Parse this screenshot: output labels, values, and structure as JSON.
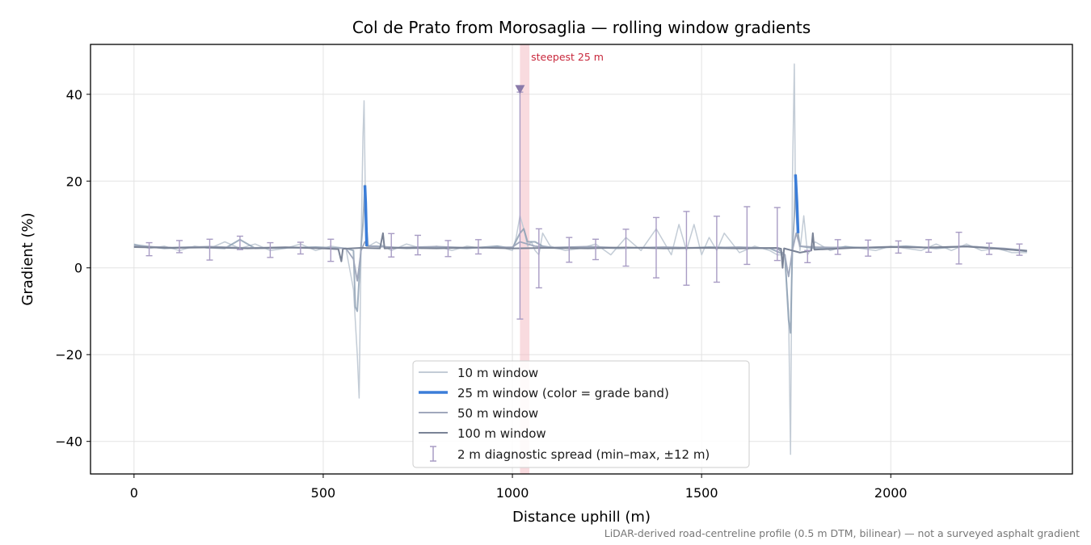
{
  "chart_data": {
    "type": "line",
    "title": "Col de Prato from Morosaglia — rolling window gradients",
    "xlabel": "Distance uphill (m)",
    "ylabel": "Gradient (%)",
    "xlim": [
      -115,
      2480
    ],
    "ylim": [
      -47.5,
      51.5
    ],
    "x_ticks": [
      0,
      500,
      1000,
      1500,
      2000
    ],
    "x_tick_labels": [
      "0",
      "500",
      "1000",
      "1500",
      "2000"
    ],
    "y_ticks": [
      -40,
      -20,
      0,
      20,
      40
    ],
    "y_tick_labels": [
      "−40",
      "−20",
      "0",
      "20",
      "40"
    ],
    "grid": true,
    "legend_position": "lower-center",
    "footnote": "LiDAR-derived road-centreline profile (0.5 m DTM, bilinear) — not a surveyed asphalt gradient",
    "colors": {
      "w10": "#c3ccd6",
      "w25_base": "#8a9cb0",
      "w25_band": "#3b7dd8",
      "w50": "#a0a8bc",
      "w100": "#7a8396",
      "diag": "#a89cc4",
      "steep_band": "#f4b8c0",
      "steep_marker": "#8a7aaa",
      "annot": "#c8283c"
    },
    "annotation": {
      "label": "steepest 25 m",
      "band": [
        1020,
        1045
      ],
      "marker_x": 1020,
      "marker_y": 41
    },
    "series": [
      {
        "name": "10 m window",
        "x": [
          0,
          40,
          80,
          120,
          160,
          200,
          240,
          280,
          320,
          360,
          400,
          440,
          480,
          520,
          560,
          580,
          590,
          595,
          600,
          605,
          608,
          612,
          620,
          640,
          680,
          720,
          760,
          800,
          840,
          880,
          920,
          960,
          1000,
          1010,
          1020,
          1030,
          1040,
          1050,
          1060,
          1070,
          1080,
          1100,
          1140,
          1180,
          1220,
          1260,
          1300,
          1340,
          1380,
          1420,
          1440,
          1460,
          1480,
          1500,
          1520,
          1540,
          1560,
          1600,
          1640,
          1680,
          1700,
          1720,
          1730,
          1735,
          1740,
          1745,
          1748,
          1752,
          1760,
          1770,
          1780,
          1800,
          1840,
          1880,
          1920,
          1960,
          2000,
          2040,
          2080,
          2120,
          2160,
          2200,
          2240,
          2280,
          2320,
          2360
        ],
        "y": [
          5.5,
          4.5,
          5,
          4,
          5,
          4.5,
          6,
          4.5,
          5.5,
          4,
          4.5,
          5.5,
          4,
          5,
          4.5,
          -5,
          -20,
          -30,
          5,
          30,
          38.5,
          12,
          5,
          6,
          4,
          5.5,
          4.5,
          5,
          4,
          5,
          4.5,
          5,
          4,
          7,
          12,
          9,
          5,
          6,
          4,
          3,
          8,
          5,
          4,
          4.5,
          5.5,
          3,
          7,
          4,
          9,
          3,
          10,
          4,
          10,
          3,
          7,
          4,
          8,
          3.5,
          5,
          4,
          3,
          3,
          -10,
          -43,
          20,
          47,
          15,
          10,
          4,
          12,
          3,
          6,
          4,
          5,
          4.5,
          4,
          5,
          4.5,
          4,
          5.5,
          4,
          5.5,
          4,
          4.5,
          3.5,
          3.5
        ]
      },
      {
        "name": "25 m window (color = grade band)",
        "x": [
          0,
          80,
          160,
          240,
          280,
          320,
          400,
          480,
          560,
          580,
          585,
          590,
          600,
          605,
          610,
          612,
          615,
          640,
          720,
          800,
          880,
          960,
          1000,
          1020,
          1030,
          1040,
          1060,
          1080,
          1120,
          1200,
          1280,
          1360,
          1440,
          1520,
          1600,
          1680,
          1720,
          1730,
          1735,
          1740,
          1745,
          1748,
          1752,
          1755,
          1760,
          1800,
          1880,
          1960,
          2040,
          2120,
          2200,
          2280,
          2360
        ],
        "y": [
          5.3,
          4.5,
          4.8,
          4.5,
          6.5,
          4.5,
          4.6,
          4.8,
          4.5,
          4,
          -9,
          -10,
          5,
          10,
          19,
          15,
          5,
          5,
          4.5,
          4.8,
          4.5,
          5,
          4.5,
          8,
          9,
          6,
          6,
          5,
          4.5,
          4.8,
          4.5,
          4.7,
          4.5,
          4.8,
          4.6,
          4.5,
          3,
          -12,
          -15,
          4,
          12,
          21.5,
          15,
          8,
          5,
          4.5,
          4.8,
          4.6,
          5,
          4.5,
          5,
          4.5,
          3.8
        ],
        "band_segments": [
          [
            610,
            615
          ],
          [
            1748,
            1756
          ]
        ]
      },
      {
        "name": "50 m window",
        "x": [
          0,
          100,
          200,
          300,
          400,
          500,
          560,
          580,
          590,
          600,
          610,
          620,
          700,
          800,
          900,
          1000,
          1020,
          1040,
          1060,
          1100,
          1200,
          1300,
          1400,
          1500,
          1600,
          1700,
          1720,
          1730,
          1740,
          1750,
          1760,
          1800,
          1900,
          2000,
          2100,
          2200,
          2300,
          2360
        ],
        "y": [
          5,
          4.7,
          4.9,
          4.6,
          4.8,
          4.6,
          4.5,
          2,
          -3,
          4,
          6,
          5,
          4.7,
          4.9,
          4.6,
          4.8,
          6,
          5.5,
          5,
          4.7,
          4.9,
          4.6,
          4.8,
          4.6,
          4.8,
          4.5,
          3,
          -2,
          4,
          8,
          5,
          4.8,
          4.6,
          4.9,
          4.7,
          5,
          4.5,
          4
        ]
      },
      {
        "name": "100 m window",
        "x": [
          0,
          100,
          200,
          300,
          400,
          500,
          540,
          548,
          552,
          600,
          650,
          658,
          662,
          700,
          800,
          900,
          1000,
          1100,
          1200,
          1300,
          1400,
          1500,
          1600,
          1700,
          1710,
          1714,
          1718,
          1760,
          1790,
          1794,
          1798,
          1850,
          1900,
          2000,
          2100,
          2200,
          2300,
          2360
        ],
        "y": [
          4.8,
          4.6,
          4.7,
          4.5,
          4.7,
          4.5,
          4.3,
          1.5,
          4.4,
          4.6,
          4.5,
          8,
          4.5,
          4.6,
          4.5,
          4.7,
          4.5,
          4.6,
          4.5,
          4.7,
          4.5,
          4.6,
          4.5,
          4.6,
          4.4,
          0,
          4.5,
          3.5,
          4,
          8,
          4.2,
          4.4,
          4.6,
          4.8,
          4.7,
          4.9,
          4.3,
          3.9
        ]
      },
      {
        "name": "2 m diagnostic spread (min–max, ±12 m)",
        "type": "errorbar",
        "points": [
          {
            "x": 40,
            "lo": 2.8,
            "hi": 5.8
          },
          {
            "x": 120,
            "lo": 3.5,
            "hi": 6.3
          },
          {
            "x": 200,
            "lo": 1.8,
            "hi": 6.6
          },
          {
            "x": 280,
            "lo": 4.2,
            "hi": 7.3
          },
          {
            "x": 360,
            "lo": 2.4,
            "hi": 5.8
          },
          {
            "x": 440,
            "lo": 3.2,
            "hi": 5.9
          },
          {
            "x": 520,
            "lo": 1.5,
            "hi": 6.6
          },
          {
            "x": 680,
            "lo": 2.5,
            "hi": 7.9
          },
          {
            "x": 750,
            "lo": 3.0,
            "hi": 7.5
          },
          {
            "x": 830,
            "lo": 2.6,
            "hi": 6.3
          },
          {
            "x": 910,
            "lo": 3.2,
            "hi": 6.5
          },
          {
            "x": 1020,
            "lo": -11.8,
            "hi": 40.5
          },
          {
            "x": 1070,
            "lo": -4.6,
            "hi": 9.0
          },
          {
            "x": 1150,
            "lo": 1.3,
            "hi": 7.0
          },
          {
            "x": 1220,
            "lo": 1.9,
            "hi": 6.6
          },
          {
            "x": 1300,
            "lo": 0.4,
            "hi": 8.9
          },
          {
            "x": 1380,
            "lo": -2.3,
            "hi": 11.6
          },
          {
            "x": 1460,
            "lo": -4.0,
            "hi": 13.0
          },
          {
            "x": 1540,
            "lo": -3.3,
            "hi": 11.9
          },
          {
            "x": 1620,
            "lo": 0.8,
            "hi": 14.1
          },
          {
            "x": 1700,
            "lo": 1.7,
            "hi": 13.9
          },
          {
            "x": 1780,
            "lo": 1.2,
            "hi": 4.0
          },
          {
            "x": 1860,
            "lo": 3.1,
            "hi": 6.5
          },
          {
            "x": 1940,
            "lo": 2.7,
            "hi": 6.4
          },
          {
            "x": 2020,
            "lo": 3.4,
            "hi": 6.2
          },
          {
            "x": 2100,
            "lo": 3.6,
            "hi": 6.5
          },
          {
            "x": 2180,
            "lo": 0.9,
            "hi": 8.2
          },
          {
            "x": 2260,
            "lo": 3.1,
            "hi": 5.7
          },
          {
            "x": 2340,
            "lo": 2.9,
            "hi": 5.5
          }
        ]
      }
    ]
  }
}
